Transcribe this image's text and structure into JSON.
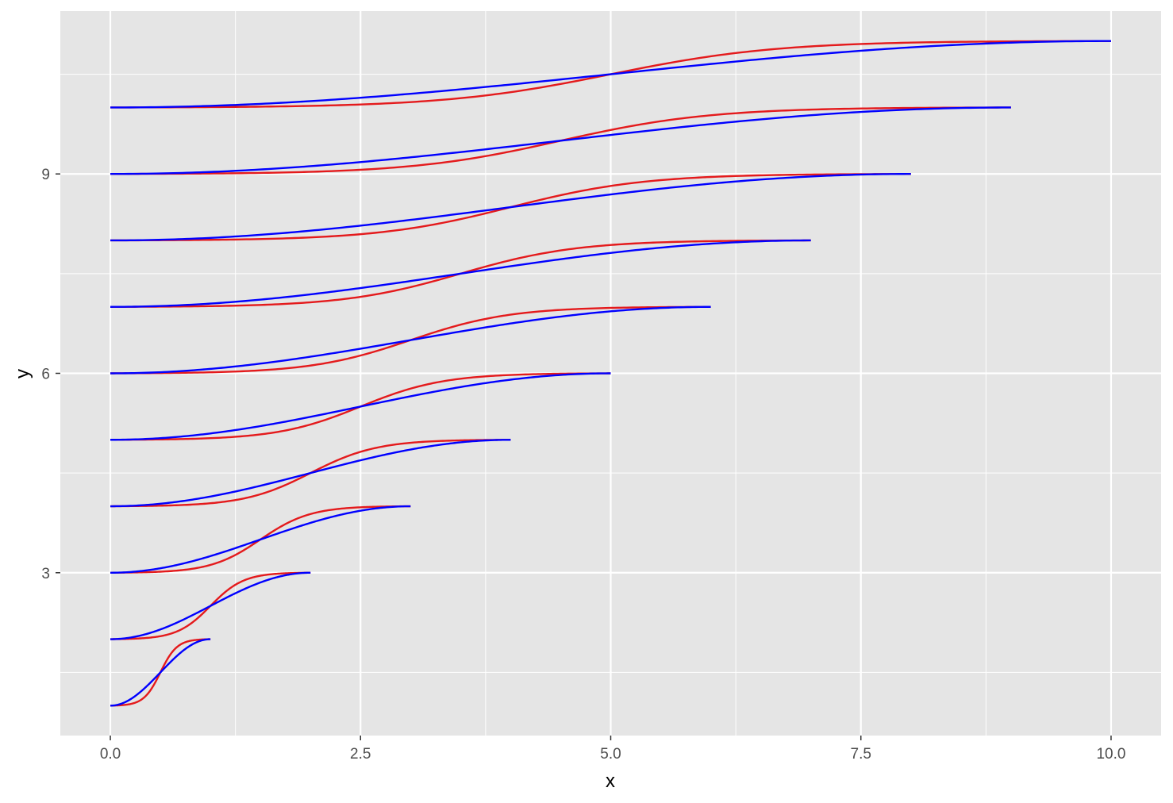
{
  "chart_data": {
    "type": "line",
    "xlabel": "x",
    "ylabel": "y",
    "xlim": [
      -0.5,
      10.5
    ],
    "ylim": [
      0.55,
      11.45
    ],
    "x_ticks": [
      0.0,
      2.5,
      5.0,
      7.5,
      10.0
    ],
    "x_tick_labels": [
      "0.0",
      "2.5",
      "5.0",
      "7.5",
      "10.0"
    ],
    "y_ticks": [
      3,
      6,
      9
    ],
    "y_tick_labels": [
      "3",
      "6",
      "9"
    ],
    "grid": true,
    "legend": "none",
    "series": [
      {
        "color": "#E41A1C",
        "curve": "steep sigmoid",
        "start": [
          0,
          1
        ],
        "end": [
          1,
          2
        ]
      },
      {
        "color": "#0000FF",
        "curve": "gentle sigmoid",
        "start": [
          0,
          1
        ],
        "end": [
          1,
          2
        ]
      },
      {
        "color": "#E41A1C",
        "curve": "steep sigmoid",
        "start": [
          0,
          2
        ],
        "end": [
          2,
          3
        ]
      },
      {
        "color": "#0000FF",
        "curve": "gentle sigmoid",
        "start": [
          0,
          2
        ],
        "end": [
          2,
          3
        ]
      },
      {
        "color": "#E41A1C",
        "curve": "steep sigmoid",
        "start": [
          0,
          3
        ],
        "end": [
          3,
          4
        ]
      },
      {
        "color": "#0000FF",
        "curve": "gentle sigmoid",
        "start": [
          0,
          3
        ],
        "end": [
          3,
          4
        ]
      },
      {
        "color": "#E41A1C",
        "curve": "steep sigmoid",
        "start": [
          0,
          4
        ],
        "end": [
          4,
          5
        ]
      },
      {
        "color": "#0000FF",
        "curve": "gentle sigmoid",
        "start": [
          0,
          4
        ],
        "end": [
          4,
          5
        ]
      },
      {
        "color": "#E41A1C",
        "curve": "steep sigmoid",
        "start": [
          0,
          5
        ],
        "end": [
          5,
          6
        ]
      },
      {
        "color": "#0000FF",
        "curve": "gentle sigmoid",
        "start": [
          0,
          5
        ],
        "end": [
          5,
          6
        ]
      },
      {
        "color": "#E41A1C",
        "curve": "steep sigmoid",
        "start": [
          0,
          6
        ],
        "end": [
          6,
          7
        ]
      },
      {
        "color": "#0000FF",
        "curve": "gentle sigmoid",
        "start": [
          0,
          6
        ],
        "end": [
          6,
          7
        ]
      },
      {
        "color": "#E41A1C",
        "curve": "steep sigmoid",
        "start": [
          0,
          7
        ],
        "end": [
          7,
          8
        ]
      },
      {
        "color": "#0000FF",
        "curve": "gentle sigmoid",
        "start": [
          0,
          7
        ],
        "end": [
          7,
          8
        ]
      },
      {
        "color": "#E41A1C",
        "curve": "steep sigmoid",
        "start": [
          0,
          8
        ],
        "end": [
          8,
          9
        ]
      },
      {
        "color": "#0000FF",
        "curve": "gentle sigmoid",
        "start": [
          0,
          8
        ],
        "end": [
          8,
          9
        ]
      },
      {
        "color": "#E41A1C",
        "curve": "steep sigmoid",
        "start": [
          0,
          9
        ],
        "end": [
          9,
          10
        ]
      },
      {
        "color": "#0000FF",
        "curve": "gentle sigmoid",
        "start": [
          0,
          9
        ],
        "end": [
          9,
          10
        ]
      },
      {
        "color": "#E41A1C",
        "curve": "steep sigmoid",
        "start": [
          0,
          10
        ],
        "end": [
          10,
          11
        ]
      },
      {
        "color": "#0000FF",
        "curve": "gentle sigmoid",
        "start": [
          0,
          10
        ],
        "end": [
          10,
          11
        ]
      }
    ]
  },
  "colors": {
    "panel_background": "#E5E5E5",
    "grid_line": "#FFFFFF",
    "red_series": "#E41A1C",
    "blue_series": "#0000FF"
  }
}
